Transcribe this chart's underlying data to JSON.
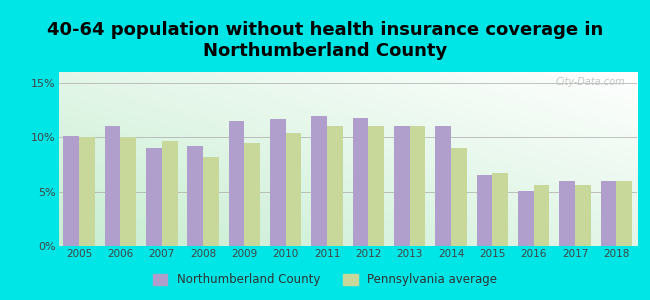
{
  "title": "40-64 population without health insurance coverage in\nNorthumberland County",
  "years": [
    2005,
    2006,
    2007,
    2008,
    2009,
    2010,
    2011,
    2012,
    2013,
    2014,
    2015,
    2016,
    2017,
    2018
  ],
  "northumberland": [
    10.1,
    11.0,
    9.0,
    9.2,
    11.5,
    11.7,
    12.0,
    11.8,
    11.0,
    11.0,
    6.5,
    5.1,
    6.0,
    6.0
  ],
  "pennsylvania": [
    10.0,
    10.0,
    9.7,
    8.2,
    9.5,
    10.4,
    11.0,
    11.0,
    11.0,
    9.0,
    6.7,
    5.6,
    5.6,
    6.0
  ],
  "nc_color": "#b09fcc",
  "pa_color": "#c8d89a",
  "bg_outer": "#00e5e5",
  "ylim": [
    0,
    16
  ],
  "yticks": [
    0,
    5,
    10,
    15
  ],
  "ytick_labels": [
    "0%",
    "5%",
    "10%",
    "15%"
  ],
  "legend_nc": "Northumberland County",
  "legend_pa": "Pennsylvania average",
  "title_fontsize": 13,
  "bar_width": 0.38
}
